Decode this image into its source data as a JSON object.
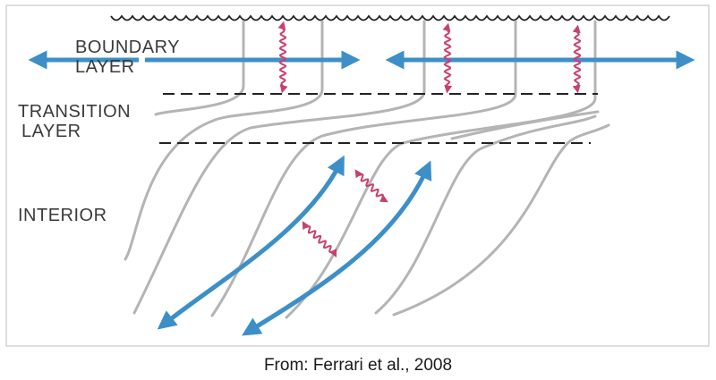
{
  "labels": {
    "boundary_layer_1": "BOUNDARY",
    "boundary_layer_2": "LAYER",
    "transition_layer_1": "TRANSITION",
    "transition_layer_2": "LAYER",
    "interior": "INTERIOR"
  },
  "caption": "From: Ferrari et al., 2008",
  "colors": {
    "frame": "#c8c8c8",
    "isopycnal": "#b4b4b4",
    "flow_arrow": "#3d8fc8",
    "mixing_arrow": "#c8406e",
    "surface_wave": "#222222",
    "layer_boundary": "#222222",
    "label_text": "#3a3a3a"
  },
  "icons": {
    "surface": "wavy-surface-line",
    "flow": "double-headed-arrow",
    "mixing": "wavy-double-headed-arrow"
  }
}
